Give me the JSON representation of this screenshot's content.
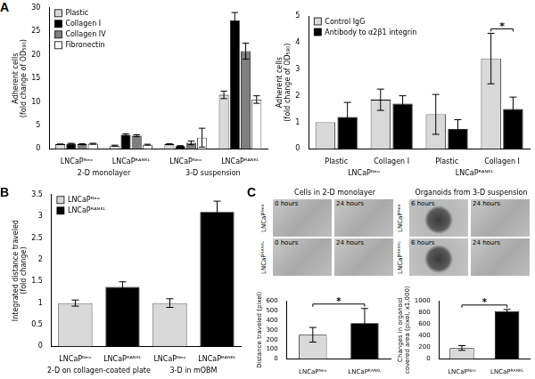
{
  "chart_data": [
    {
      "type": "bar",
      "categories": [
        "LNCaPᴺᵉᵒ",
        "LNCaPᴿᴬᴺᴷᴸ",
        "LNCaPᴺᵉᵒ",
        "LNCaPᴿᴬᴺᴷᴸ"
      ],
      "category_groups": [
        "2-D monolayer",
        "3-D suspension"
      ],
      "ylabel": [
        "Adherent cells",
        "(fold change of OD₅₉₀)"
      ],
      "ylim": [
        0,
        30
      ],
      "yticks": [
        0,
        5,
        10,
        15,
        20,
        25,
        30
      ],
      "grid": false,
      "legend": "upper left",
      "series": [
        {
          "name": "Plastic",
          "color": "#d9d9d9",
          "values": [
            1.0,
            0.7,
            1.0,
            11.5
          ],
          "errors": [
            0.05,
            0.1,
            0.1,
            0.8
          ]
        },
        {
          "name": "Collagen I",
          "color": "#000000",
          "values": [
            1.1,
            3.0,
            0.6,
            27.3
          ],
          "errors": [
            0.1,
            0.2,
            0.1,
            1.7
          ]
        },
        {
          "name": "Collagen IV",
          "color": "#7f7f7f",
          "values": [
            1.0,
            2.8,
            1.3,
            20.8
          ],
          "errors": [
            0.1,
            0.2,
            0.4,
            1.7
          ]
        },
        {
          "name": "Fibronectin",
          "color": "#ffffff",
          "values": [
            1.1,
            0.9,
            2.4,
            10.5
          ],
          "errors": [
            0.1,
            0.1,
            2.0,
            0.8
          ]
        }
      ]
    },
    {
      "type": "bar",
      "categories": [
        "Plastic",
        "Collagen I",
        "Plastic",
        "Collagen I"
      ],
      "category_groups": [
        "LNCaPᴺᵉᵒ",
        "LNCaPᴿᴬᴺᴷᴸ"
      ],
      "ylabel": [
        "Adherent cells",
        "(fold change of OD₅₉₀)"
      ],
      "ylim": [
        0,
        5
      ],
      "yticks": [
        0,
        1,
        2,
        3,
        4,
        5
      ],
      "grid": false,
      "legend": "upper left",
      "series": [
        {
          "name": "Control IgG",
          "color": "#d9d9d9",
          "values": [
            1.0,
            1.85,
            1.3,
            3.4
          ],
          "errors": [
            null,
            0.4,
            0.75,
            0.95
          ]
        },
        {
          "name": "Antibody to α2β1 integrin",
          "color": "#000000",
          "values": [
            1.2,
            1.7,
            0.75,
            1.5
          ],
          "errors": [
            0.55,
            0.3,
            0.35,
            0.45
          ]
        }
      ],
      "annotations": [
        {
          "text": "*",
          "points": [
            [
              0,
              3
            ],
            [
              1,
              3
            ]
          ]
        }
      ]
    },
    {
      "type": "bar",
      "categories": [
        "LNCaPᴺᵉᵒ",
        "LNCaPᴿᴬᴺᴷᴸ",
        "LNCaPᴺᵉᵒ",
        "LNCaPᴿᴬᴺᴷᴸ"
      ],
      "category_groups": [
        "2-D on collagen-coated plate",
        "3-D in mOBM"
      ],
      "ylabel": [
        "Integrated distance traveled",
        "(fold change)"
      ],
      "ylim": [
        0,
        3.5
      ],
      "yticks": [
        0,
        0.5,
        1,
        1.5,
        2,
        2.5,
        3,
        3.5
      ],
      "grid": false,
      "legend": "upper left",
      "series": [
        {
          "name": "LNCaPᴺᵉᵒ",
          "color": "#d9d9d9",
          "values": [
            1.0,
            null,
            1.0,
            null
          ],
          "errors": [
            0.07,
            null,
            0.1,
            null
          ]
        },
        {
          "name": "LNCaPᴿᴬᴺᴷᴸ",
          "color": "#000000",
          "values": [
            null,
            1.37,
            null,
            3.1
          ],
          "errors": [
            null,
            0.12,
            null,
            0.25
          ]
        }
      ]
    },
    {
      "type": "bar",
      "categories": [
        "LNCaPᴺᵉᵒ",
        "LNCaPᴿᴬᴺᴷᴸ"
      ],
      "ylabel": "Distance traveled (pixel)",
      "ylim": [
        0,
        600
      ],
      "yticks": [
        0,
        100,
        200,
        300,
        400,
        500,
        600
      ],
      "grid": false,
      "values": [
        250,
        370
      ],
      "errors": [
        75,
        150
      ],
      "colors": [
        "#d9d9d9",
        "#000000"
      ],
      "annotations": [
        {
          "text": "*",
          "points": [
            [
              0,
              0
            ],
            [
              0,
              1
            ]
          ]
        }
      ]
    },
    {
      "type": "bar",
      "categories": [
        "LNCaPᴺᵉᵒ",
        "LNCaPᴿᴬᴺᴷᴸ"
      ],
      "ylabel": [
        "Changes in organoid",
        "covered area (pixel, x1,000)"
      ],
      "ylim": [
        0,
        1000
      ],
      "yticks": [
        0,
        200,
        400,
        600,
        800,
        1000
      ],
      "grid": false,
      "values": [
        190,
        820
      ],
      "errors": [
        40,
        30
      ],
      "colors": [
        "#d9d9d9",
        "#000000"
      ],
      "annotations": [
        {
          "text": "*",
          "points": [
            [
              0,
              0
            ],
            [
              0,
              1
            ]
          ]
        }
      ]
    }
  ],
  "panel_labels": [
    "A",
    "B",
    "C"
  ],
  "images": {
    "rows": [
      "LNCaPᴺᵉᵒ",
      "LNCaPᴿᴬᴺᴷᴸ"
    ],
    "sections": [
      {
        "title": "Cells in 2-D monolayer",
        "times": [
          "0 hours",
          "24 hours"
        ]
      },
      {
        "title": "Organoids from 3-D suspension",
        "times": [
          "6 hours",
          "24 hours"
        ]
      }
    ]
  }
}
